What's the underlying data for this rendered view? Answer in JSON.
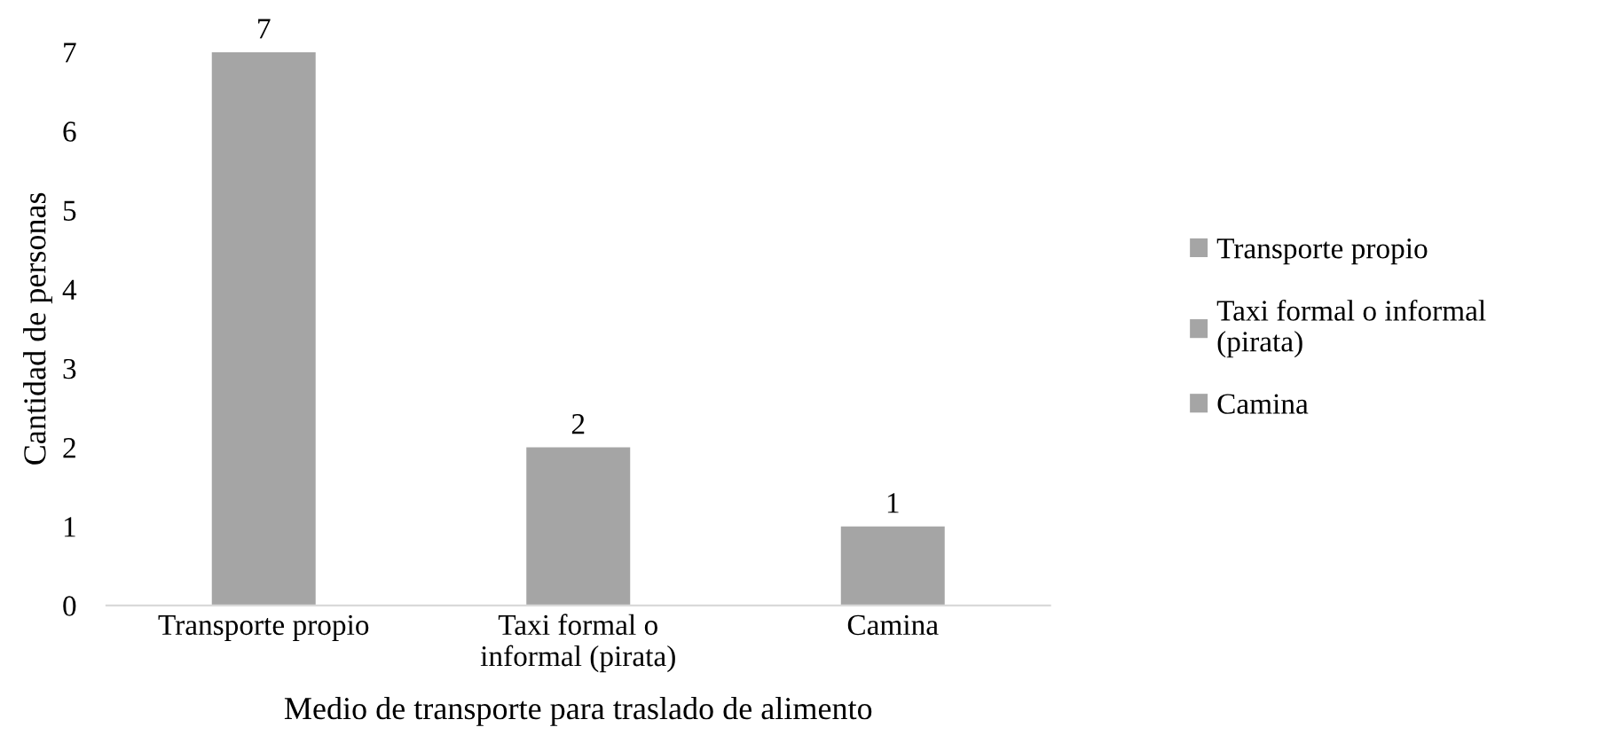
{
  "chart_data": {
    "type": "bar",
    "xlabel": "Medio de transporte para traslado de alimento",
    "ylabel": "Cantidad de personas",
    "categories": [
      "Transporte propio",
      "Taxi formal o informal (pirata)",
      "Camina"
    ],
    "series": [
      {
        "name": "Transporte propio",
        "color": "#a5a5a5",
        "values": [
          7,
          null,
          null
        ]
      },
      {
        "name": "Taxi formal o informal (pirata)",
        "color": "#a5a5a5",
        "values": [
          null,
          2,
          null
        ]
      },
      {
        "name": "Camina",
        "color": "#a5a5a5",
        "values": [
          null,
          null,
          1
        ]
      }
    ],
    "ylim": [
      0,
      7
    ],
    "yticks": [
      0,
      1,
      2,
      3,
      4,
      5,
      6,
      7
    ],
    "data_labels": true,
    "legend": "right",
    "grid": false
  }
}
